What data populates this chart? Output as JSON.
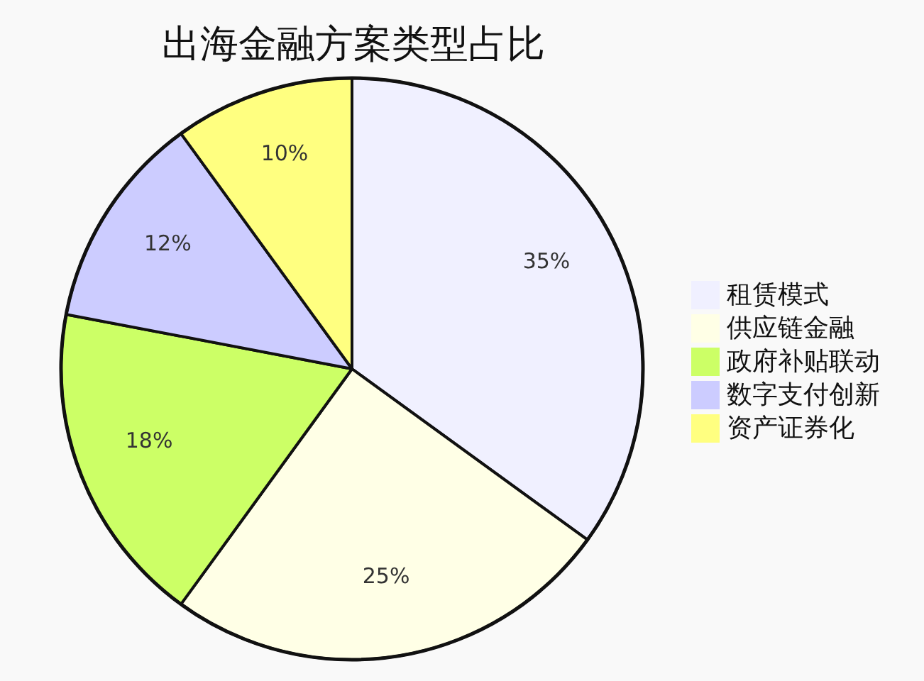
{
  "chart_data": {
    "type": "pie",
    "title": "出海金融方案类型占比",
    "categories": [
      "租赁模式",
      "供应链金融",
      "政府补贴联动",
      "数字支付创新",
      "资产证券化"
    ],
    "values": [
      35,
      25,
      18,
      12,
      10
    ],
    "colors": [
      "#f0f0ff",
      "#ffffe6",
      "#ccff66",
      "#ccccff",
      "#ffff80"
    ],
    "value_labels": [
      "35%",
      "25%",
      "18%",
      "12%",
      "10%"
    ],
    "legend": "right"
  }
}
